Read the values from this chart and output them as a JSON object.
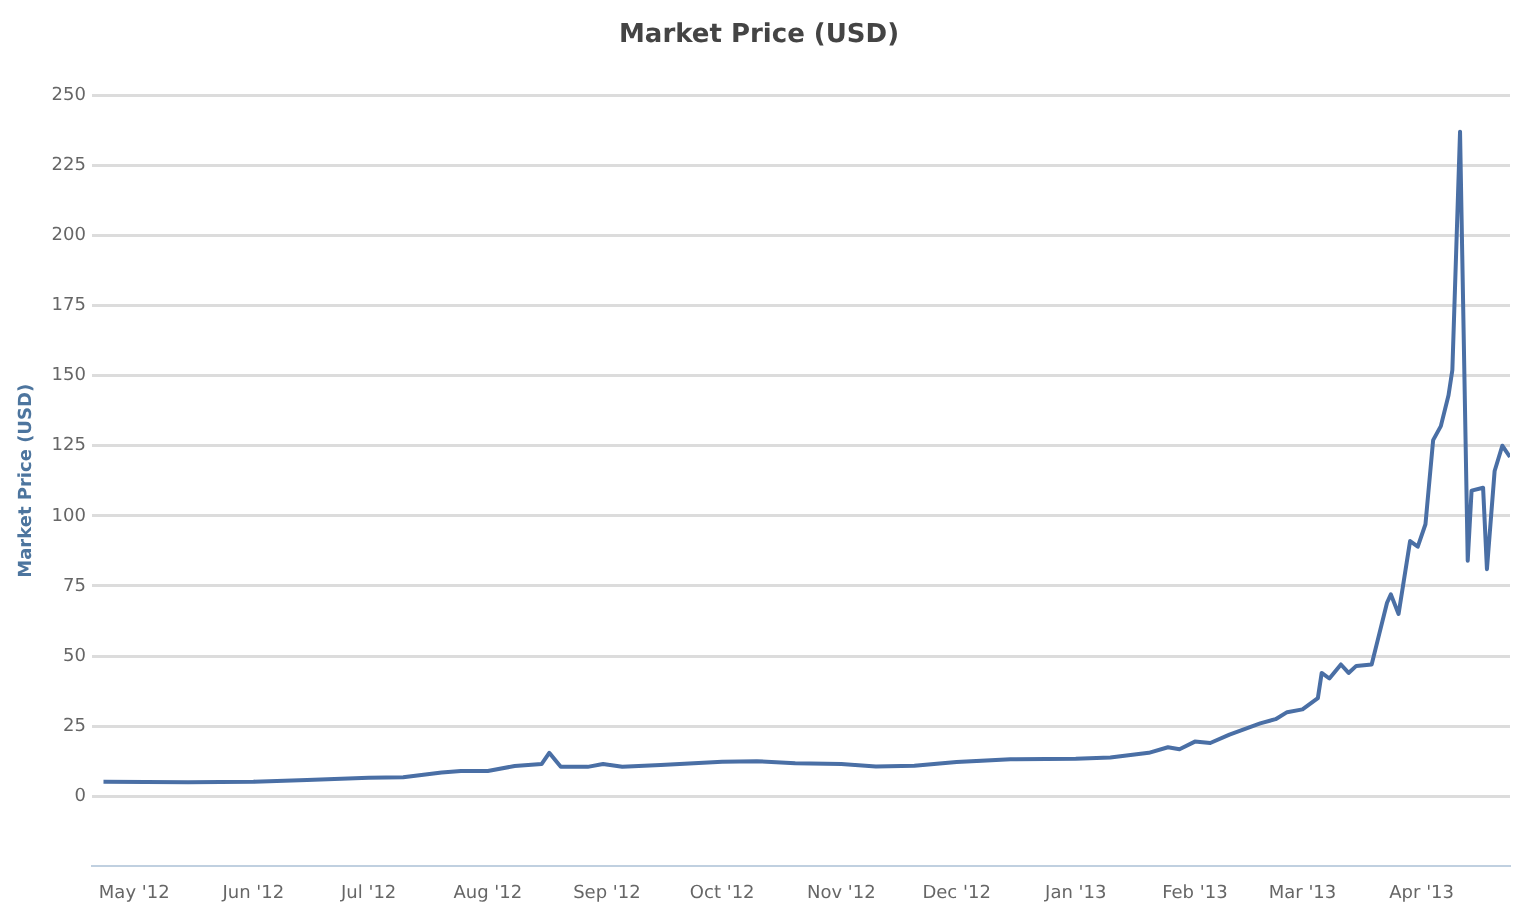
{
  "chart_data": {
    "type": "line",
    "title": "Market Price (USD)",
    "ylabel": "Market Price (USD)",
    "x": [
      "2012-04-23",
      "2012-05-15",
      "2012-06-01",
      "2012-06-15",
      "2012-07-01",
      "2012-07-10",
      "2012-07-20",
      "2012-07-25",
      "2012-08-01",
      "2012-08-08",
      "2012-08-15",
      "2012-08-17",
      "2012-08-20",
      "2012-08-27",
      "2012-08-31",
      "2012-09-05",
      "2012-09-15",
      "2012-10-01",
      "2012-10-10",
      "2012-10-20",
      "2012-11-01",
      "2012-11-10",
      "2012-11-20",
      "2012-12-01",
      "2012-12-15",
      "2013-01-01",
      "2013-01-10",
      "2013-01-20",
      "2013-01-25",
      "2013-01-28",
      "2013-02-01",
      "2013-02-05",
      "2013-02-10",
      "2013-02-18",
      "2013-02-22",
      "2013-02-25",
      "2013-03-01",
      "2013-03-05",
      "2013-03-06",
      "2013-03-08",
      "2013-03-11",
      "2013-03-13",
      "2013-03-15",
      "2013-03-19",
      "2013-03-21",
      "2013-03-23",
      "2013-03-24",
      "2013-03-26",
      "2013-03-29",
      "2013-03-31",
      "2013-04-02",
      "2013-04-04",
      "2013-04-06",
      "2013-04-08",
      "2013-04-09",
      "2013-04-11",
      "2013-04-13",
      "2013-04-14",
      "2013-04-17",
      "2013-04-18",
      "2013-04-20",
      "2013-04-22",
      "2013-04-24"
    ],
    "series": [
      {
        "color": "#4a6fa5",
        "values": [
          5.2,
          5,
          5.2,
          5.8,
          6.6,
          6.8,
          8.5,
          9,
          9,
          10.8,
          11.5,
          15.5,
          10.5,
          10.5,
          11.5,
          10.5,
          11.2,
          12.3,
          12.5,
          11.8,
          11.5,
          10.6,
          10.9,
          12.2,
          13.2,
          13.4,
          13.8,
          15.5,
          17.5,
          16.8,
          19.5,
          19,
          22,
          26,
          27.5,
          30,
          31,
          35,
          44,
          42,
          47,
          44,
          46.5,
          47,
          58,
          69,
          72,
          65,
          91,
          89,
          97,
          127,
          132,
          143,
          152,
          237,
          84,
          109,
          110,
          81,
          116,
          125,
          121
        ]
      }
    ],
    "xlim": [
      "2012-04-20",
      "2013-04-24"
    ],
    "xticks": [
      {
        "value": "2012-05-01",
        "label": "May '12"
      },
      {
        "value": "2012-06-01",
        "label": "Jun '12"
      },
      {
        "value": "2012-07-01",
        "label": "Jul '12"
      },
      {
        "value": "2012-08-01",
        "label": "Aug '12"
      },
      {
        "value": "2012-09-01",
        "label": "Sep '12"
      },
      {
        "value": "2012-10-01",
        "label": "Oct '12"
      },
      {
        "value": "2012-11-01",
        "label": "Nov '12"
      },
      {
        "value": "2012-12-01",
        "label": "Dec '12"
      },
      {
        "value": "2013-01-01",
        "label": "Jan '13"
      },
      {
        "value": "2013-02-01",
        "label": "Feb '13"
      },
      {
        "value": "2013-03-01",
        "label": "Mar '13"
      },
      {
        "value": "2013-04-01",
        "label": "Apr '13"
      }
    ],
    "ylim": [
      -25,
      250
    ],
    "yticks": [
      0,
      25,
      50,
      75,
      100,
      125,
      150,
      175,
      200,
      225,
      250
    ],
    "grid": "y",
    "marker": "none",
    "line_style": "solid"
  }
}
